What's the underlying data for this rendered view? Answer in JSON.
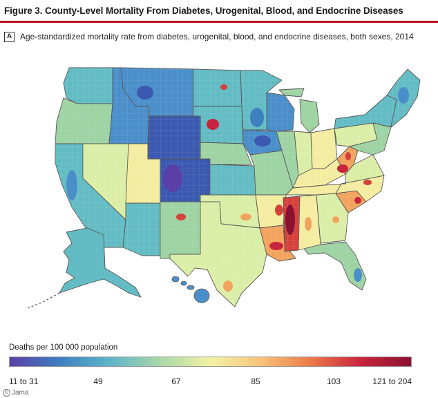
{
  "figure": {
    "title": "Figure 3. County-Level Mortality From Diabetes, Urogenital, Blood, and Endocrine Diseases",
    "panel_label": "A",
    "panel_caption": "Age-standardized mortality rate from diabetes, urogenital, blood, and endocrine diseases, both sexes, 2014"
  },
  "legend": {
    "title": "Deaths per 100 000 population",
    "ticks": [
      "11 to 31",
      "49",
      "67",
      "85",
      "103",
      "121 to 204"
    ],
    "gradient_colors": [
      "#5a3fa6",
      "#3e7fc0",
      "#5fb5c9",
      "#a8d8a8",
      "#f2f1a6",
      "#f6c47a",
      "#ec7a4a",
      "#c9243e",
      "#8a1230"
    ]
  },
  "map": {
    "region": "United States (counties)",
    "state_colors": {
      "navy": "#3b59b0",
      "blue": "#4a8fca",
      "teal": "#63bcc4",
      "green": "#9ed3a3",
      "pale": "#dbeea7",
      "yellow": "#f4eca0",
      "orange": "#f2a45e",
      "red": "#d5423c"
    }
  },
  "credit": {
    "text": "Jama"
  }
}
